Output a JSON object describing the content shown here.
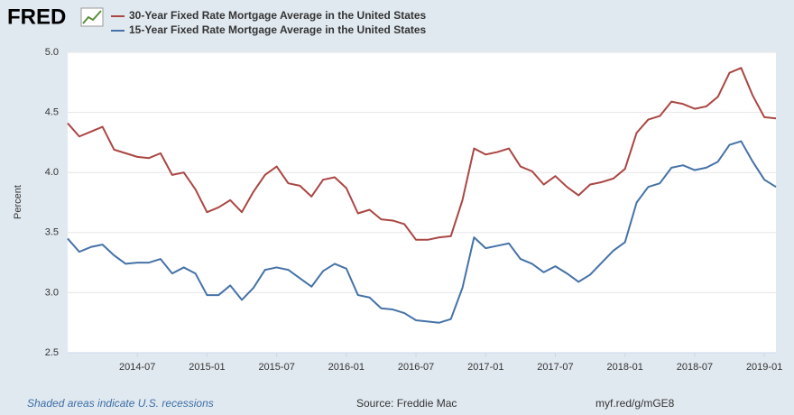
{
  "logo": "FRED",
  "chart_data": {
    "type": "line",
    "ylabel": "Percent",
    "x": [
      "2014-01",
      "2014-02",
      "2014-03",
      "2014-04",
      "2014-05",
      "2014-06",
      "2014-07",
      "2014-08",
      "2014-09",
      "2014-10",
      "2014-11",
      "2014-12",
      "2015-01",
      "2015-02",
      "2015-03",
      "2015-04",
      "2015-05",
      "2015-06",
      "2015-07",
      "2015-08",
      "2015-09",
      "2015-10",
      "2015-11",
      "2015-12",
      "2016-01",
      "2016-02",
      "2016-03",
      "2016-04",
      "2016-05",
      "2016-06",
      "2016-07",
      "2016-08",
      "2016-09",
      "2016-10",
      "2016-11",
      "2016-12",
      "2017-01",
      "2017-02",
      "2017-03",
      "2017-04",
      "2017-05",
      "2017-06",
      "2017-07",
      "2017-08",
      "2017-09",
      "2017-10",
      "2017-11",
      "2017-12",
      "2018-01",
      "2018-02",
      "2018-03",
      "2018-04",
      "2018-05",
      "2018-06",
      "2018-07",
      "2018-08",
      "2018-09",
      "2018-10",
      "2018-11",
      "2018-12",
      "2019-01",
      "2019-02"
    ],
    "series": [
      {
        "name": "30-Year Fixed Rate Mortgage Average in the United States",
        "color": "#aa4643",
        "values": [
          4.41,
          4.3,
          4.34,
          4.38,
          4.19,
          4.16,
          4.13,
          4.12,
          4.16,
          3.98,
          4.0,
          3.86,
          3.67,
          3.71,
          3.77,
          3.67,
          3.84,
          3.98,
          4.05,
          3.91,
          3.89,
          3.8,
          3.94,
          3.96,
          3.87,
          3.66,
          3.69,
          3.61,
          3.6,
          3.57,
          3.44,
          3.44,
          3.46,
          3.47,
          3.77,
          4.2,
          4.15,
          4.17,
          4.2,
          4.05,
          4.01,
          3.9,
          3.97,
          3.88,
          3.81,
          3.9,
          3.92,
          3.95,
          4.03,
          4.33,
          4.44,
          4.47,
          4.59,
          4.57,
          4.53,
          4.55,
          4.63,
          4.83,
          4.87,
          4.64,
          4.46,
          4.45
        ]
      },
      {
        "name": "15-Year Fixed Rate Mortgage Average in the United States",
        "color": "#4572a7",
        "values": [
          3.45,
          3.34,
          3.38,
          3.4,
          3.31,
          3.24,
          3.25,
          3.25,
          3.28,
          3.16,
          3.21,
          3.16,
          2.98,
          2.98,
          3.06,
          2.94,
          3.04,
          3.19,
          3.21,
          3.19,
          3.12,
          3.05,
          3.18,
          3.24,
          3.2,
          2.98,
          2.96,
          2.87,
          2.86,
          2.83,
          2.77,
          2.76,
          2.75,
          2.78,
          3.04,
          3.46,
          3.37,
          3.39,
          3.41,
          3.28,
          3.24,
          3.17,
          3.22,
          3.16,
          3.09,
          3.15,
          3.25,
          3.35,
          3.42,
          3.75,
          3.88,
          3.91,
          4.04,
          4.06,
          4.02,
          4.04,
          4.09,
          4.23,
          4.26,
          4.09,
          3.94,
          3.88
        ]
      }
    ],
    "xlim": [
      "2014-01",
      "2019-02"
    ],
    "xticks": [
      "2014-07",
      "2015-01",
      "2015-07",
      "2016-01",
      "2016-07",
      "2017-01",
      "2017-07",
      "2018-01",
      "2018-07",
      "2019-01"
    ],
    "ylim": [
      2.5,
      5
    ],
    "yticks": [
      2.5,
      {
        "value": 3,
        "label": "3.0"
      },
      3.5,
      {
        "value": 4,
        "label": "4.0"
      },
      4.5,
      {
        "value": 5,
        "label": "5.0"
      }
    ],
    "grid": true
  },
  "footer": {
    "note": "Shaded areas indicate U.S. recessions",
    "source": "Source: Freddie Mac",
    "link": "myf.red/g/mGE8"
  }
}
